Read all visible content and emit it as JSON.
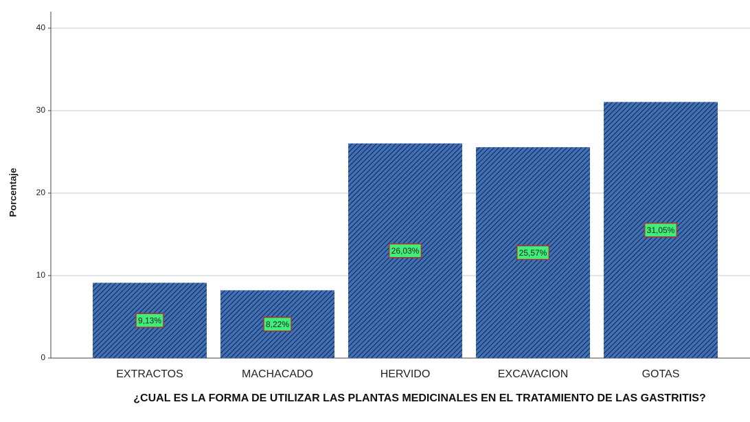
{
  "chart_data": {
    "type": "bar",
    "x_label": "¿CUAL ES LA FORMA DE UTILIZAR LAS PLANTAS MEDICINALES EN EL TRATAMIENTO DE LAS GASTRITIS?",
    "y_label": "Porcentaje",
    "categories": [
      "EXTRACTOS",
      "MACHACADO",
      "HERVIDO",
      "EXCAVACION",
      "GOTAS"
    ],
    "values": [
      9.13,
      8.22,
      26.03,
      25.57,
      31.05
    ],
    "value_labels": [
      "9,13%",
      "8,22%",
      "26,03%",
      "25,57%",
      "31,05%"
    ],
    "color": "#3f70b8",
    "ylim": [
      0,
      42
    ],
    "yticks": [
      0,
      10,
      20,
      30,
      40
    ],
    "grid": true
  }
}
